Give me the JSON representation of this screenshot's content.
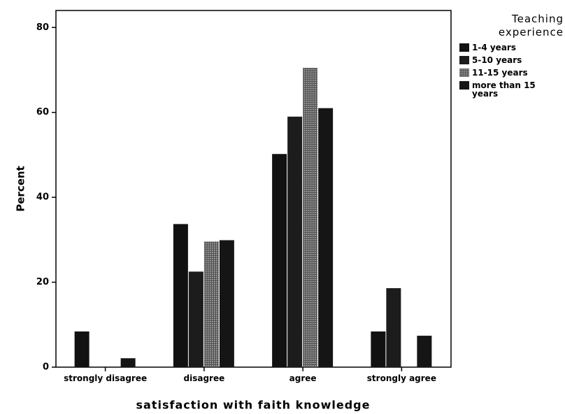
{
  "chart_data": {
    "type": "bar",
    "x_label": "satisfaction with faith knowledge",
    "y_label": "Percent",
    "legend_title": "Teaching experience",
    "legend_position": "right",
    "categories": [
      "strongly disagree",
      "disagree",
      "agree",
      "strongly agree"
    ],
    "series": [
      {
        "name": "1-4 years",
        "color": "#111111",
        "values": [
          8.4,
          33.7,
          50.2,
          8.4
        ]
      },
      {
        "name": "5-10 years",
        "color": "#1c1c1c",
        "values": [
          0,
          22.5,
          59,
          18.6
        ]
      },
      {
        "name": "11-15 years",
        "color": "#7a7a7a",
        "values": [
          0,
          29.6,
          70.5,
          0
        ]
      },
      {
        "name": "more than 15 years",
        "color": "#151515",
        "values": [
          2.1,
          29.9,
          61,
          7.4
        ]
      }
    ],
    "ylim": [
      0,
      84
    ],
    "yticks": [
      0,
      20,
      40,
      60,
      80
    ],
    "grid": false
  }
}
